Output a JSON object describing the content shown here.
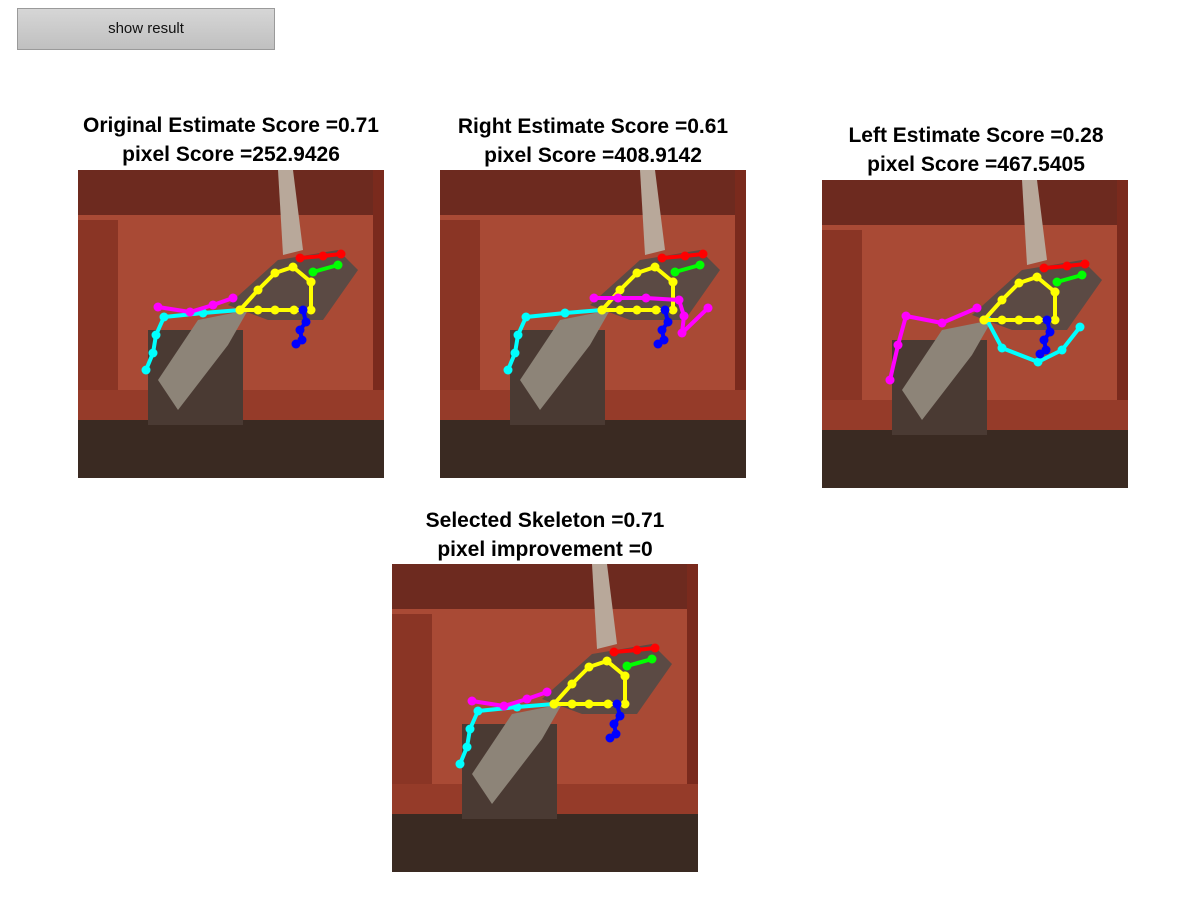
{
  "controls": {
    "show_result_label": "show result"
  },
  "panels": {
    "original": {
      "line1": "Original Estimate Score =0.71",
      "line2": "pixel Score =252.9426"
    },
    "right": {
      "line1": "Right Estimate Score =0.61",
      "line2": "pixel Score =408.9142"
    },
    "left": {
      "line1": "Left Estimate Score =0.28",
      "line2": "pixel Score =467.5405"
    },
    "selected": {
      "line1": "Selected Skeleton =0.71",
      "line2": "pixel improvement =0"
    }
  },
  "colors": {
    "head": "#ff0000",
    "neck": "#00ff00",
    "torso": "#ffff00",
    "right_arm": "#0000ff",
    "left_arm": "#ff00ff",
    "legs": "#00ffff",
    "wall": "#a94a35",
    "floor": "#3a2a22"
  }
}
